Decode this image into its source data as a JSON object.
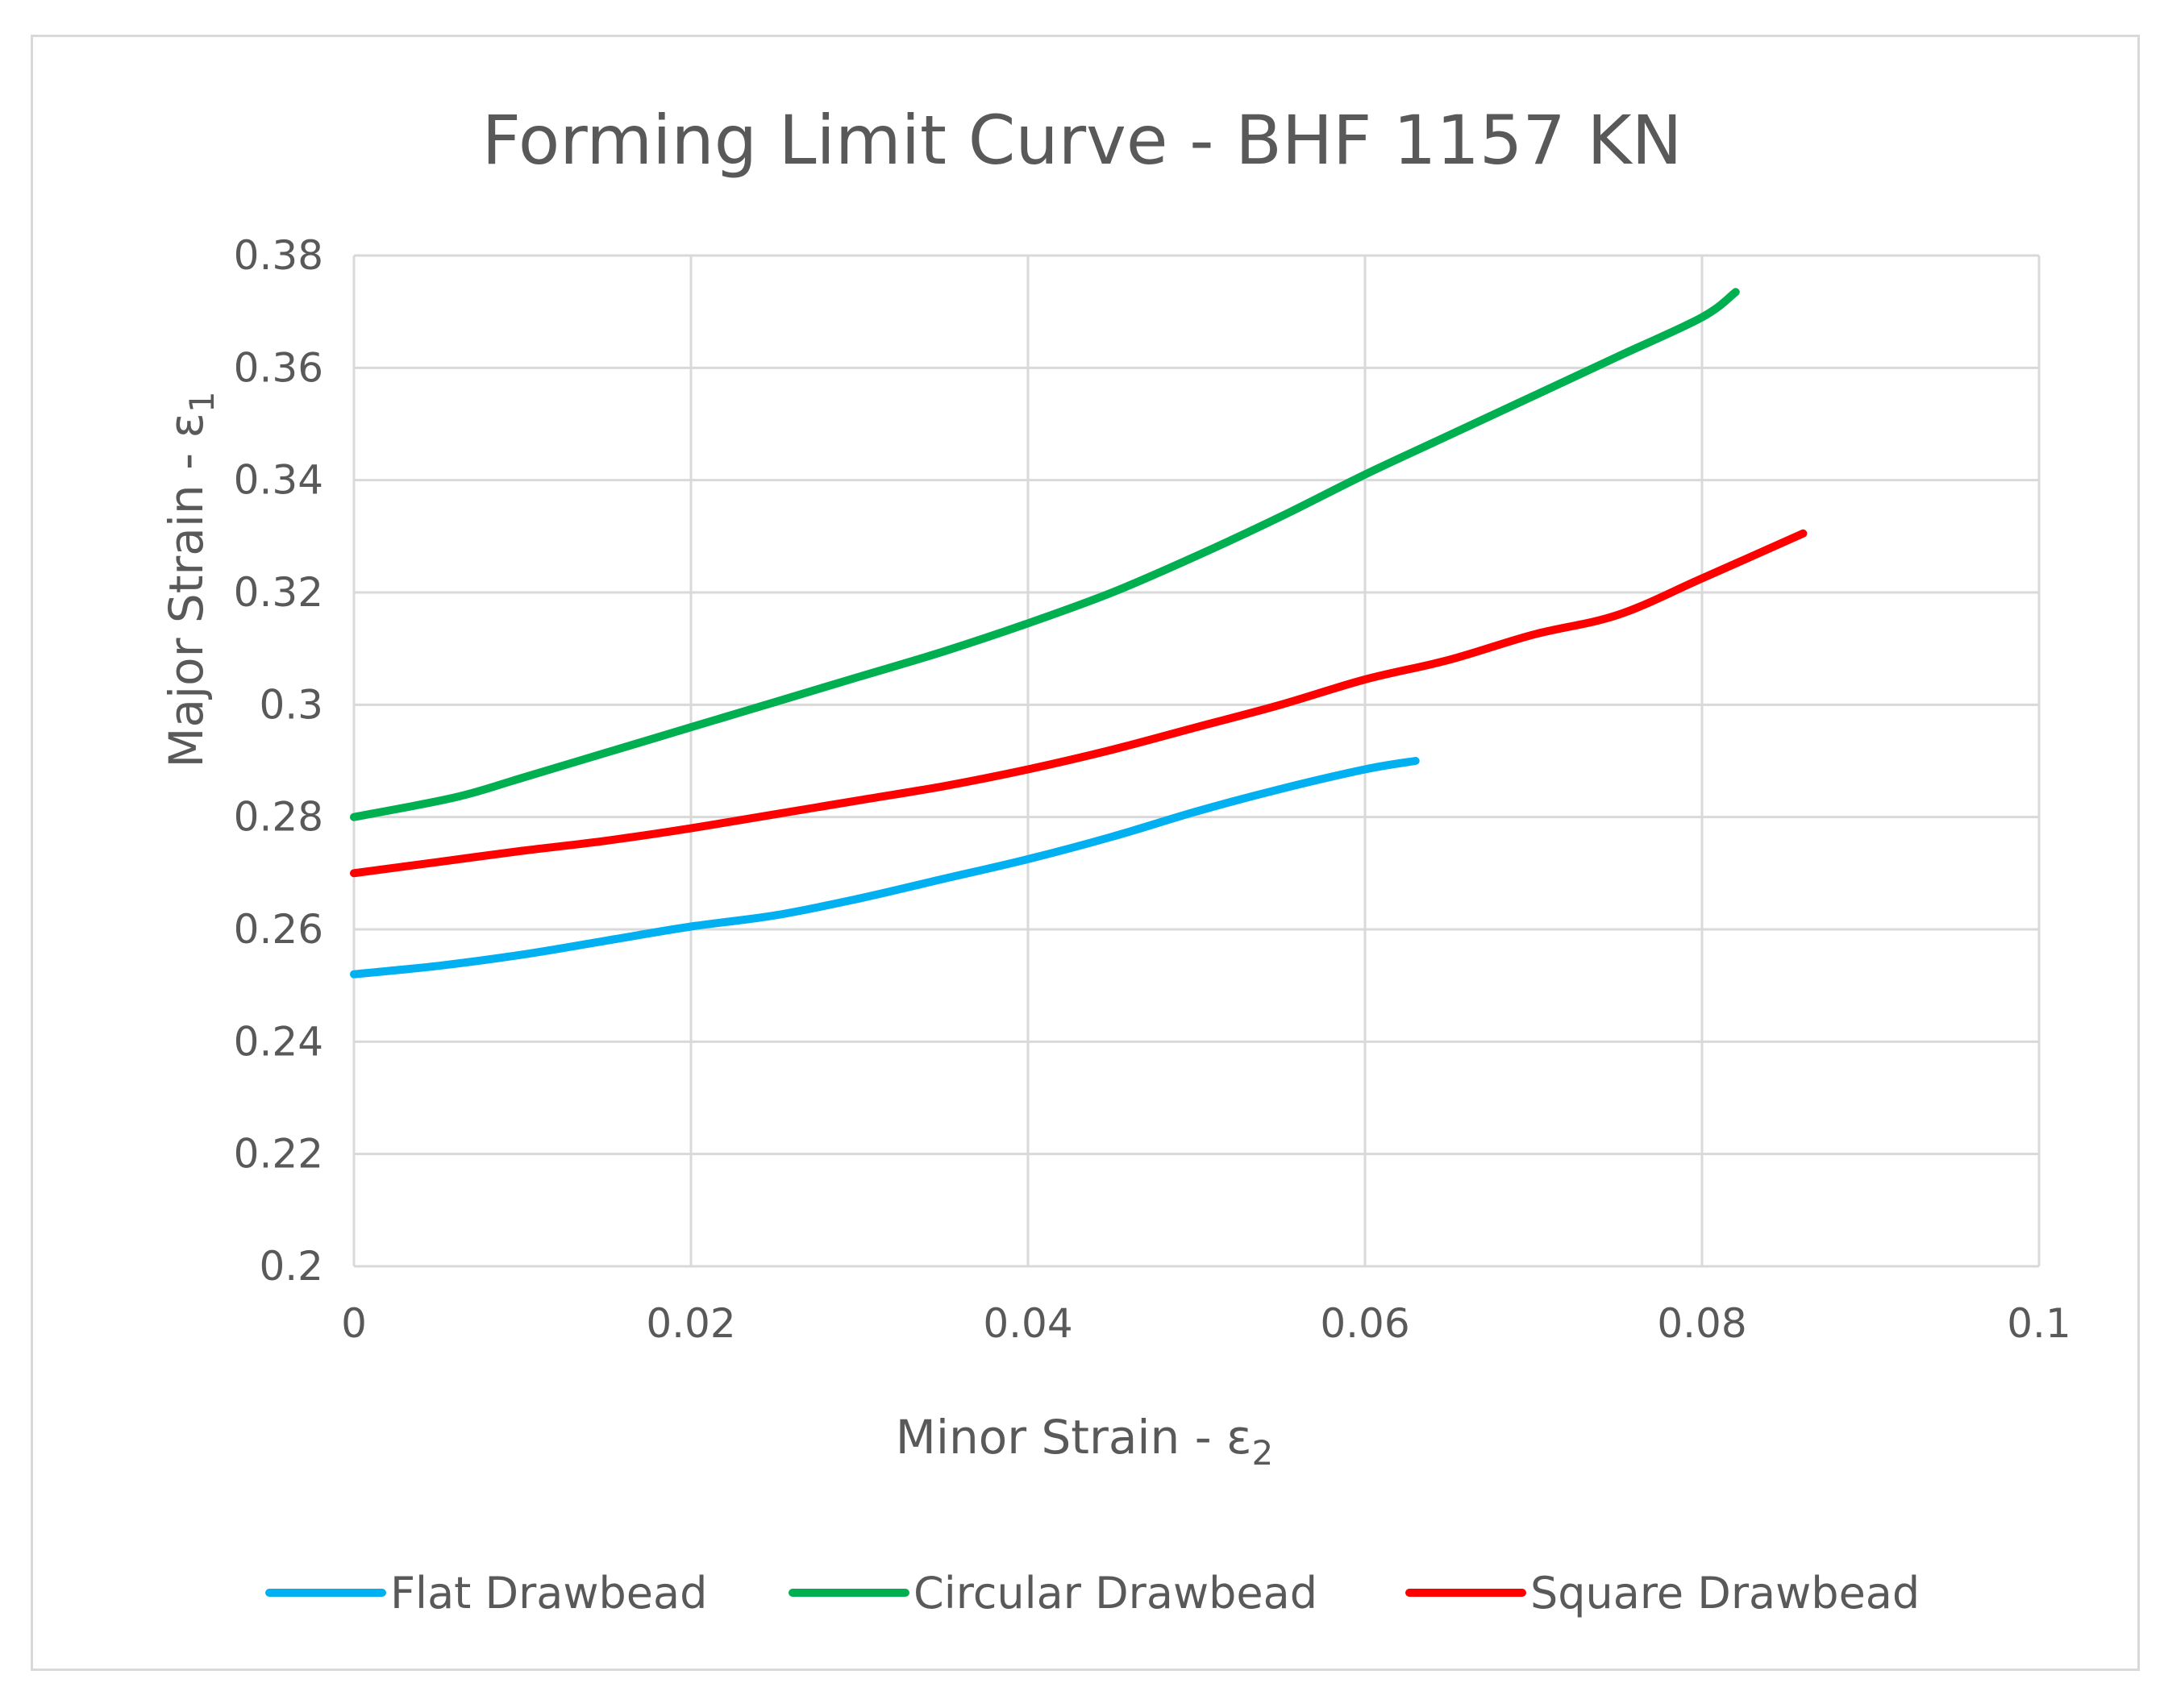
{
  "chart_data": {
    "type": "line",
    "title": "Forming Limit Curve - BHF 1157 KN",
    "xlabel": "Minor Strain - ",
    "xlabel_symbol": "ε",
    "xlabel_subscript": "2",
    "ylabel": "Major Strain - ",
    "ylabel_symbol": "ε",
    "ylabel_subscript": "1",
    "xlim": [
      0,
      0.1
    ],
    "ylim": [
      0.2,
      0.38
    ],
    "x_ticks": [
      "0",
      "0.02",
      "0.04",
      "0.06",
      "0.08",
      "0.1"
    ],
    "y_ticks": [
      "0.2",
      "0.22",
      "0.24",
      "0.26",
      "0.28",
      "0.3",
      "0.32",
      "0.34",
      "0.36",
      "0.38"
    ],
    "grid": true,
    "legend_position": "bottom",
    "series": [
      {
        "name": "Flat Drawbead",
        "color": "#00b0f0",
        "points": [
          [
            0,
            0.252
          ],
          [
            0.005,
            0.2535
          ],
          [
            0.01,
            0.2555
          ],
          [
            0.015,
            0.258
          ],
          [
            0.02,
            0.2605
          ],
          [
            0.025,
            0.2625
          ],
          [
            0.03,
            0.2655
          ],
          [
            0.035,
            0.269
          ],
          [
            0.04,
            0.2725
          ],
          [
            0.045,
            0.2765
          ],
          [
            0.05,
            0.281
          ],
          [
            0.055,
            0.285
          ],
          [
            0.06,
            0.2885
          ],
          [
            0.063,
            0.29
          ]
        ]
      },
      {
        "name": "Circular Drawbead",
        "color": "#00b050",
        "points": [
          [
            0,
            0.28
          ],
          [
            0.006,
            0.2835
          ],
          [
            0.01,
            0.287
          ],
          [
            0.015,
            0.2915
          ],
          [
            0.02,
            0.296
          ],
          [
            0.025,
            0.3005
          ],
          [
            0.03,
            0.305
          ],
          [
            0.035,
            0.3095
          ],
          [
            0.04,
            0.3145
          ],
          [
            0.045,
            0.32
          ],
          [
            0.05,
            0.3265
          ],
          [
            0.055,
            0.3335
          ],
          [
            0.06,
            0.341
          ],
          [
            0.065,
            0.348
          ],
          [
            0.07,
            0.355
          ],
          [
            0.075,
            0.362
          ],
          [
            0.08,
            0.369
          ],
          [
            0.082,
            0.3735
          ]
        ]
      },
      {
        "name": "Square Drawbead",
        "color": "#ff0000",
        "points": [
          [
            0,
            0.27
          ],
          [
            0.005,
            0.272
          ],
          [
            0.01,
            0.274
          ],
          [
            0.015,
            0.2758
          ],
          [
            0.02,
            0.278
          ],
          [
            0.025,
            0.2805
          ],
          [
            0.03,
            0.283
          ],
          [
            0.035,
            0.2855
          ],
          [
            0.04,
            0.2885
          ],
          [
            0.045,
            0.292
          ],
          [
            0.05,
            0.296
          ],
          [
            0.055,
            0.3
          ],
          [
            0.06,
            0.3045
          ],
          [
            0.065,
            0.308
          ],
          [
            0.07,
            0.3125
          ],
          [
            0.075,
            0.316
          ],
          [
            0.08,
            0.3225
          ],
          [
            0.086,
            0.3305
          ]
        ]
      }
    ]
  }
}
